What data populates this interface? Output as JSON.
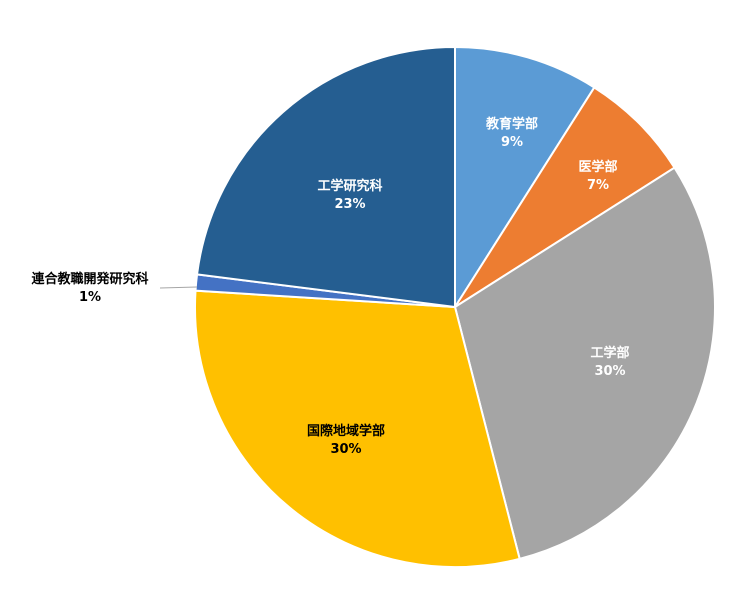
{
  "chart_data": {
    "type": "pie",
    "title": "",
    "slices": [
      {
        "label": "教育学部",
        "value": 9,
        "value_label": "9%",
        "color": "#5b9bd5",
        "label_color": "#ffffff"
      },
      {
        "label": "医学部",
        "value": 7,
        "value_label": "7%",
        "color": "#ed7d31",
        "label_color": "#ffffff"
      },
      {
        "label": "工学部",
        "value": 30,
        "value_label": "30%",
        "color": "#a5a5a5",
        "label_color": "#ffffff"
      },
      {
        "label": "国際地域学部",
        "value": 30,
        "value_label": "30%",
        "color": "#ffc000",
        "label_color": "#000000"
      },
      {
        "label": "連合教職開発研究科",
        "value": 1,
        "value_label": "1%",
        "color": "#4472c4",
        "label_color": "#000000",
        "leader_line": true
      },
      {
        "label": "工学研究科",
        "value": 23,
        "value_label": "23%",
        "color": "#255e91",
        "label_color": "#ffffff"
      }
    ],
    "start_angle_deg": 0,
    "direction": "clockwise",
    "legend": "none"
  }
}
